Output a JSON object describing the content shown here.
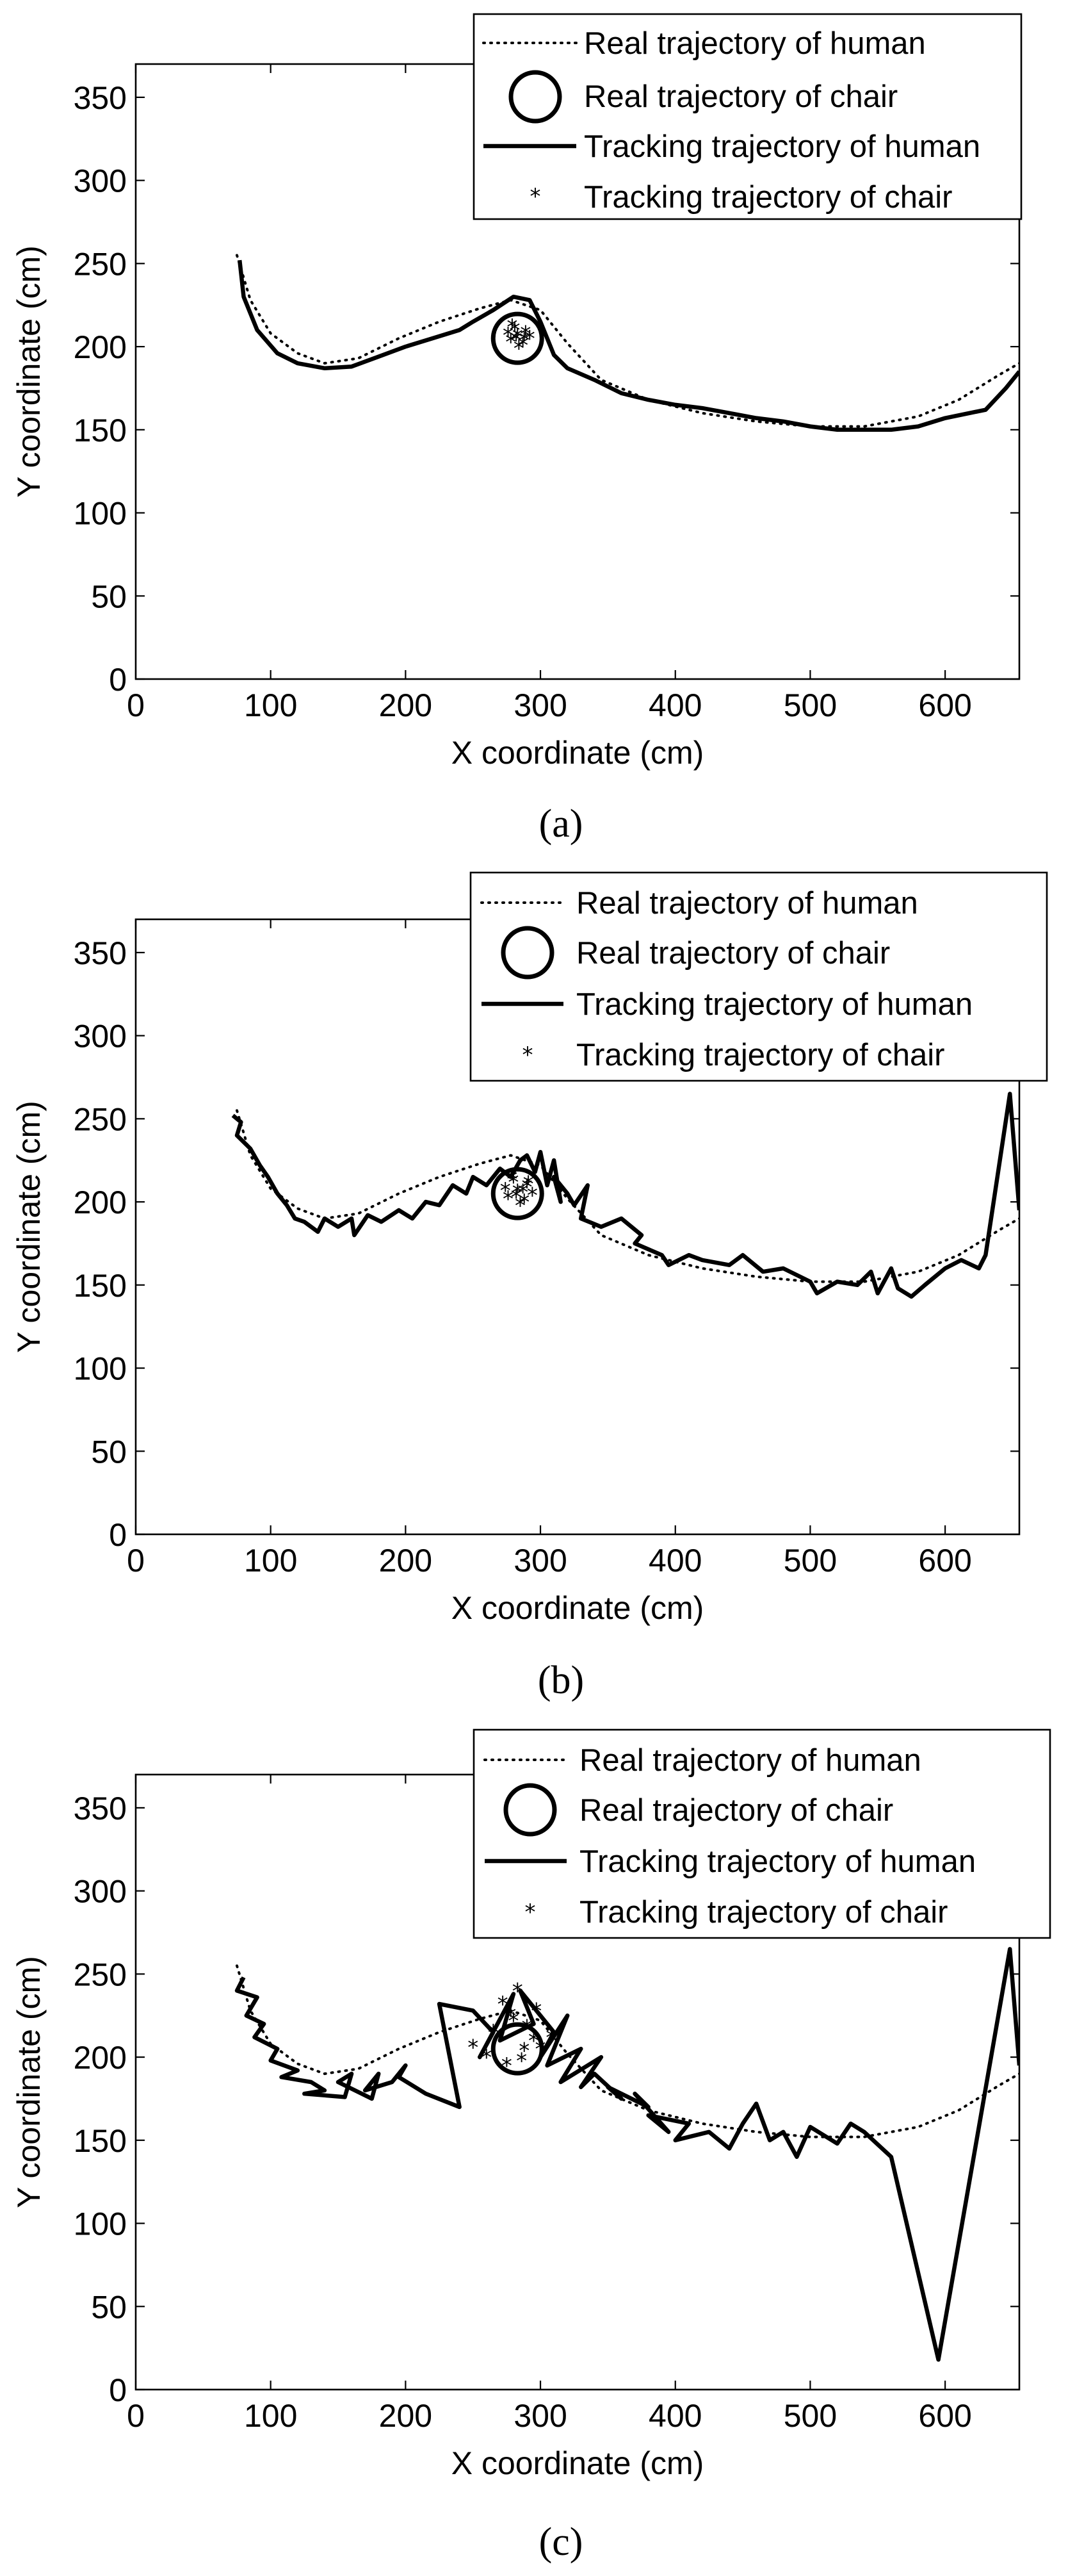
{
  "chart_data": [
    {
      "type": "line",
      "panel_label": "(a)",
      "xlabel": "X coordinate (cm)",
      "ylabel": "Y coordinate (cm)",
      "xlim": [
        0,
        655
      ],
      "ylim": [
        0,
        370
      ],
      "xticks": [
        0,
        100,
        200,
        300,
        400,
        500,
        600
      ],
      "yticks": [
        0,
        50,
        100,
        150,
        200,
        250,
        300,
        350
      ],
      "legend_position": "top-right",
      "legend": [
        "Real trajectory of human",
        "Real trajectory of chair",
        "Tracking trajectory of human",
        "Tracking trajectory of chair"
      ],
      "real_chair": {
        "x": 283,
        "y": 205
      },
      "series": [
        {
          "name": "Real trajectory of human",
          "style": "dotted",
          "x": [
            75,
            85,
            100,
            120,
            140,
            165,
            195,
            225,
            255,
            278,
            300,
            320,
            345,
            380,
            420,
            460,
            500,
            540,
            580,
            610,
            640,
            655
          ],
          "y": [
            255,
            228,
            208,
            196,
            190,
            193,
            205,
            215,
            223,
            228,
            222,
            202,
            180,
            168,
            160,
            155,
            152,
            152,
            158,
            168,
            183,
            190
          ]
        },
        {
          "name": "Tracking trajectory of human",
          "style": "solid",
          "x": [
            77,
            80,
            90,
            105,
            120,
            140,
            160,
            180,
            200,
            220,
            240,
            250,
            265,
            280,
            292,
            300,
            310,
            320,
            340,
            360,
            380,
            400,
            420,
            440,
            460,
            480,
            500,
            520,
            540,
            560,
            580,
            600,
            630,
            645,
            655
          ],
          "y": [
            252,
            230,
            210,
            196,
            190,
            187,
            188,
            194,
            200,
            205,
            210,
            215,
            222,
            230,
            228,
            215,
            195,
            187,
            180,
            172,
            168,
            165,
            163,
            160,
            157,
            155,
            152,
            150,
            150,
            150,
            152,
            157,
            162,
            175,
            185
          ]
        },
        {
          "name": "Tracking trajectory of chair",
          "style": "star",
          "x": [
            283,
            278,
            289,
            281,
            287,
            276,
            292,
            284,
            279,
            288,
            282
          ],
          "y": [
            206,
            203,
            208,
            210,
            201,
            207,
            205,
            199,
            212,
            204,
            204
          ]
        }
      ]
    },
    {
      "type": "line",
      "panel_label": "(b)",
      "xlabel": "X coordinate (cm)",
      "ylabel": "Y coordinate (cm)",
      "xlim": [
        0,
        655
      ],
      "ylim": [
        0,
        370
      ],
      "xticks": [
        0,
        100,
        200,
        300,
        400,
        500,
        600
      ],
      "yticks": [
        0,
        50,
        100,
        150,
        200,
        250,
        300,
        350
      ],
      "legend_position": "top-right",
      "legend": [
        "Real trajectory of human",
        "Real trajectory of chair",
        "Tracking trajectory of human",
        "Tracking trajectory of chair"
      ],
      "real_chair": {
        "x": 283,
        "y": 205
      },
      "series": [
        {
          "name": "Real trajectory of human",
          "style": "dotted",
          "x": [
            75,
            85,
            100,
            120,
            140,
            165,
            195,
            225,
            255,
            278,
            300,
            320,
            345,
            380,
            420,
            460,
            500,
            540,
            580,
            610,
            640,
            655
          ],
          "y": [
            255,
            228,
            208,
            196,
            190,
            193,
            205,
            215,
            223,
            228,
            222,
            202,
            180,
            168,
            160,
            155,
            152,
            152,
            158,
            168,
            183,
            190
          ]
        },
        {
          "name": "Tracking trajectory of human",
          "style": "solid",
          "x": [
            72,
            78,
            75,
            85,
            92,
            98,
            105,
            112,
            118,
            125,
            135,
            140,
            150,
            160,
            162,
            172,
            182,
            195,
            205,
            215,
            225,
            235,
            245,
            250,
            260,
            270,
            278,
            285,
            290,
            296,
            300,
            305,
            310,
            315,
            310,
            320,
            325,
            335,
            330,
            345,
            360,
            375,
            370,
            390,
            395,
            410,
            420,
            440,
            450,
            465,
            480,
            500,
            505,
            520,
            535,
            545,
            550,
            560,
            565,
            575,
            585,
            600,
            612,
            625,
            630,
            648,
            655
          ],
          "y": [
            252,
            248,
            240,
            232,
            222,
            215,
            205,
            198,
            190,
            188,
            182,
            190,
            185,
            190,
            180,
            192,
            188,
            195,
            190,
            200,
            198,
            210,
            205,
            215,
            210,
            220,
            215,
            225,
            228,
            218,
            230,
            210,
            225,
            200,
            215,
            205,
            198,
            210,
            190,
            185,
            190,
            180,
            175,
            168,
            162,
            168,
            165,
            162,
            168,
            158,
            160,
            152,
            145,
            152,
            150,
            158,
            145,
            160,
            148,
            143,
            150,
            160,
            165,
            160,
            168,
            265,
            195
          ]
        },
        {
          "name": "Tracking trajectory of chair",
          "style": "star",
          "x": [
            283,
            276,
            290,
            280,
            288,
            274,
            294,
            285,
            279,
            291,
            282,
            287
          ],
          "y": [
            206,
            202,
            209,
            212,
            200,
            207,
            204,
            198,
            214,
            211,
            203,
            206
          ]
        }
      ]
    },
    {
      "type": "line",
      "panel_label": "(c)",
      "xlabel": "X coordinate (cm)",
      "ylabel": "Y coordinate (cm)",
      "xlim": [
        0,
        655
      ],
      "ylim": [
        0,
        370
      ],
      "xticks": [
        0,
        100,
        200,
        300,
        400,
        500,
        600
      ],
      "yticks": [
        0,
        50,
        100,
        150,
        200,
        250,
        300,
        350
      ],
      "legend_position": "top-right",
      "legend": [
        "Real trajectory of human",
        "Real trajectory of chair",
        "Tracking trajectory of human",
        "Tracking trajectory of chair"
      ],
      "real_chair": {
        "x": 283,
        "y": 205
      },
      "series": [
        {
          "name": "Real trajectory of human",
          "style": "dotted",
          "x": [
            75,
            85,
            100,
            120,
            140,
            165,
            195,
            225,
            255,
            278,
            300,
            320,
            345,
            380,
            420,
            460,
            500,
            540,
            580,
            610,
            640,
            655
          ],
          "y": [
            255,
            228,
            208,
            196,
            190,
            193,
            205,
            215,
            223,
            228,
            222,
            202,
            180,
            168,
            160,
            155,
            152,
            152,
            158,
            168,
            183,
            190
          ]
        },
        {
          "name": "Tracking trajectory of human",
          "style": "solid",
          "x": [
            80,
            75,
            90,
            82,
            95,
            88,
            105,
            100,
            120,
            108,
            130,
            140,
            125,
            155,
            160,
            150,
            175,
            180,
            170,
            190,
            200,
            195,
            215,
            240,
            225,
            250,
            265,
            255,
            280,
            270,
            295,
            285,
            310,
            300,
            320,
            305,
            330,
            315,
            345,
            330,
            340,
            360,
            350,
            380,
            370,
            395,
            380,
            410,
            400,
            425,
            440,
            450,
            460,
            470,
            480,
            490,
            500,
            520,
            530,
            540,
            560,
            595,
            648,
            655
          ],
          "y": [
            248,
            240,
            236,
            225,
            220,
            212,
            205,
            198,
            192,
            188,
            185,
            180,
            178,
            176,
            190,
            185,
            175,
            190,
            180,
            185,
            195,
            188,
            178,
            170,
            232,
            228,
            215,
            200,
            238,
            210,
            220,
            240,
            215,
            200,
            225,
            195,
            205,
            185,
            200,
            182,
            190,
            175,
            182,
            170,
            178,
            155,
            165,
            160,
            150,
            155,
            145,
            160,
            172,
            150,
            155,
            140,
            158,
            148,
            160,
            155,
            140,
            18,
            265,
            195
          ]
        },
        {
          "name": "Tracking trajectory of chair",
          "style": "star",
          "x": [
            250,
            265,
            278,
            286,
            295,
            272,
            300,
            283,
            290,
            260,
            308,
            280,
            275,
            297,
            288
          ],
          "y": [
            206,
            215,
            225,
            198,
            210,
            232,
            205,
            240,
            218,
            200,
            212,
            222,
            195,
            228,
            204
          ]
        }
      ]
    }
  ]
}
